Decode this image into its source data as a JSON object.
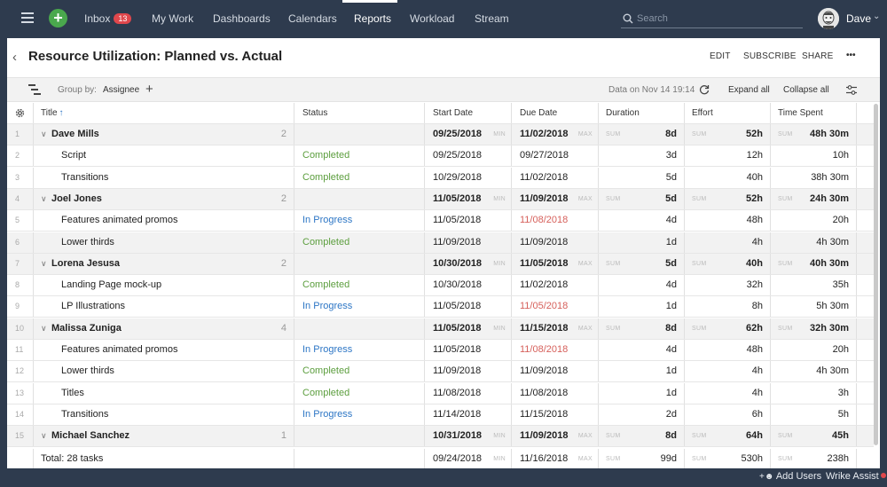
{
  "nav": {
    "items": [
      {
        "label": "Inbox",
        "badge": "13"
      },
      {
        "label": "My Work"
      },
      {
        "label": "Dashboards"
      },
      {
        "label": "Calendars"
      },
      {
        "label": "Reports"
      },
      {
        "label": "Workload"
      },
      {
        "label": "Stream"
      }
    ],
    "active": "Reports",
    "search_placeholder": "Search",
    "user": "Dave",
    "accent_color": "#4aa84d",
    "badge_color": "#e0474c"
  },
  "report": {
    "title": "Resource Utilization: Planned vs. Actual",
    "actions": [
      "EDIT",
      "SUBSCRIBE",
      "SHARE"
    ],
    "more": "•••"
  },
  "toolbar": {
    "group_by_label": "Group by:",
    "group_by_value": "Assignee",
    "add": "+",
    "data_on": "Data on Nov 14 19:14",
    "expand_all": "Expand all",
    "collapse_all": "Collapse all"
  },
  "table": {
    "columns": [
      "Title",
      "Status",
      "Start Date",
      "Due Date",
      "Duration",
      "Effort",
      "Time Spent"
    ],
    "sort_indicator": "↑",
    "tags": {
      "min": "MIN",
      "max": "MAX",
      "sum": "SUM"
    },
    "rows": [
      {
        "type": "group",
        "num": "1",
        "title": "Dave Mills",
        "count": "2",
        "start": "09/25/2018",
        "due": "11/02/2018",
        "duration": "8d",
        "effort": "52h",
        "time_spent": "48h 30m"
      },
      {
        "type": "task",
        "num": "2",
        "title": "Script",
        "status": "Completed",
        "start": "09/25/2018",
        "due": "09/27/2018",
        "duration": "3d",
        "effort": "12h",
        "time_spent": "10h"
      },
      {
        "type": "task",
        "num": "3",
        "title": "Transitions",
        "status": "Completed",
        "start": "10/29/2018",
        "due": "11/02/2018",
        "duration": "5d",
        "effort": "40h",
        "time_spent": "38h 30m"
      },
      {
        "type": "group",
        "num": "4",
        "title": "Joel Jones",
        "count": "2",
        "start": "11/05/2018",
        "due": "11/09/2018",
        "duration": "5d",
        "effort": "52h",
        "time_spent": "24h 30m"
      },
      {
        "type": "task",
        "num": "5",
        "title": "Features animated promos",
        "status": "In Progress",
        "start": "11/05/2018",
        "due": "11/08/2018",
        "overdue": true,
        "duration": "4d",
        "effort": "48h",
        "time_spent": "20h"
      },
      {
        "type": "task",
        "num": "6",
        "title": "Lower thirds",
        "status": "Completed",
        "start": "11/09/2018",
        "due": "11/09/2018",
        "duration": "1d",
        "effort": "4h",
        "time_spent": "4h 30m",
        "shaded": true
      },
      {
        "type": "group",
        "num": "7",
        "title": "Lorena Jesusa",
        "count": "2",
        "start": "10/30/2018",
        "due": "11/05/2018",
        "duration": "5d",
        "effort": "40h",
        "time_spent": "40h 30m"
      },
      {
        "type": "task",
        "num": "8",
        "title": "Landing Page mock-up",
        "status": "Completed",
        "start": "10/30/2018",
        "due": "11/02/2018",
        "duration": "4d",
        "effort": "32h",
        "time_spent": "35h"
      },
      {
        "type": "task",
        "num": "9",
        "title": "LP Illustrations",
        "status": "In Progress",
        "start": "11/05/2018",
        "due": "11/05/2018",
        "overdue": true,
        "duration": "1d",
        "effort": "8h",
        "time_spent": "5h 30m"
      },
      {
        "type": "group",
        "num": "10",
        "title": "Malissa Zuniga",
        "count": "4",
        "start": "11/05/2018",
        "due": "11/15/2018",
        "duration": "8d",
        "effort": "62h",
        "time_spent": "32h 30m"
      },
      {
        "type": "task",
        "num": "11",
        "title": "Features animated promos",
        "status": "In Progress",
        "start": "11/05/2018",
        "due": "11/08/2018",
        "overdue": true,
        "duration": "4d",
        "effort": "48h",
        "time_spent": "20h"
      },
      {
        "type": "task",
        "num": "12",
        "title": "Lower thirds",
        "status": "Completed",
        "start": "11/09/2018",
        "due": "11/09/2018",
        "duration": "1d",
        "effort": "4h",
        "time_spent": "4h 30m"
      },
      {
        "type": "task",
        "num": "13",
        "title": "Titles",
        "status": "Completed",
        "start": "11/08/2018",
        "due": "11/08/2018",
        "duration": "1d",
        "effort": "4h",
        "time_spent": "3h"
      },
      {
        "type": "task",
        "num": "14",
        "title": "Transitions",
        "status": "In Progress",
        "start": "11/14/2018",
        "due": "11/15/2018",
        "duration": "2d",
        "effort": "6h",
        "time_spent": "5h"
      },
      {
        "type": "group",
        "num": "15",
        "title": "Michael Sanchez",
        "count": "1",
        "start": "10/31/2018",
        "due": "11/09/2018",
        "duration": "8d",
        "effort": "64h",
        "time_spent": "45h"
      }
    ],
    "total": {
      "title": "Total: 28 tasks",
      "start": "09/24/2018",
      "due": "11/16/2018",
      "duration": "99d",
      "effort": "530h",
      "time_spent": "238h"
    }
  },
  "status_colors": {
    "Completed": "#5c9e3e",
    "In Progress": "#2d76c5",
    "overdue": "#d6605b"
  },
  "bottombar": {
    "add_users": "Add Users",
    "assist": "Wrike Assist"
  }
}
